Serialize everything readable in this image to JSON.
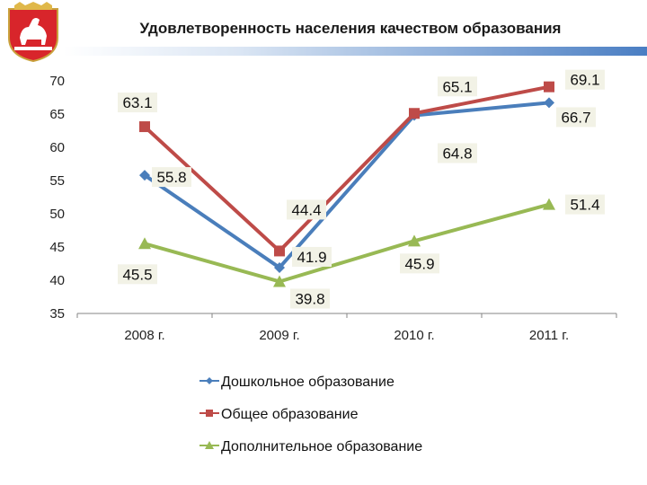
{
  "header": {
    "title": "Удовлетворенность населения качеством образования",
    "emblem_icon": "chelyabinsk-coat-of-arms-icon"
  },
  "chart_data": {
    "type": "line",
    "title": "",
    "xlabel": "",
    "ylabel": "",
    "categories": [
      "2008 г.",
      "2009 г.",
      "2010 г.",
      "2011 г."
    ],
    "ylim": [
      35,
      70
    ],
    "yticks": [
      35,
      40,
      45,
      50,
      55,
      60,
      65,
      70
    ],
    "grid": false,
    "legend_position": "bottom",
    "series": [
      {
        "name": "Дошкольное образование",
        "values": [
          55.8,
          41.9,
          64.8,
          66.7
        ],
        "labels": [
          "55.8",
          "41.9",
          "64.8",
          "66.7"
        ],
        "color": "#4a7ebb",
        "marker": "diamond"
      },
      {
        "name": "Общее образование",
        "values": [
          63.1,
          44.4,
          65.1,
          69.1
        ],
        "labels": [
          "63.1",
          "44.4",
          "65.1",
          "69.1"
        ],
        "color": "#be4b48",
        "marker": "square"
      },
      {
        "name": "Дополнительное образование",
        "values": [
          45.5,
          39.8,
          45.9,
          51.4
        ],
        "labels": [
          "45.5",
          "39.8",
          "45.9",
          "51.4"
        ],
        "color": "#98b954",
        "marker": "triangle"
      }
    ]
  }
}
